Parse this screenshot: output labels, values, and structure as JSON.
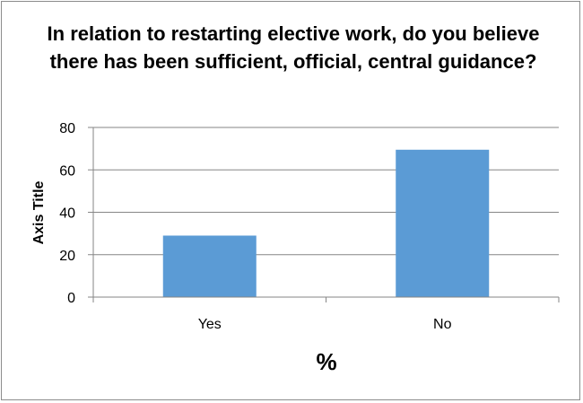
{
  "chart_data": {
    "type": "bar",
    "title": "In relation to restarting elective work, do you believe there has been sufficient, official, central guidance?",
    "categories": [
      "Yes",
      "No"
    ],
    "values": [
      29,
      69.5
    ],
    "xlabel": "%",
    "ylabel": "Axis Title",
    "ylim": [
      0,
      80
    ],
    "yticks": [
      0,
      20,
      40,
      60,
      80
    ],
    "grid": true,
    "legend": "none",
    "bar_color": "#5b9bd5",
    "grid_color": "#868686"
  }
}
